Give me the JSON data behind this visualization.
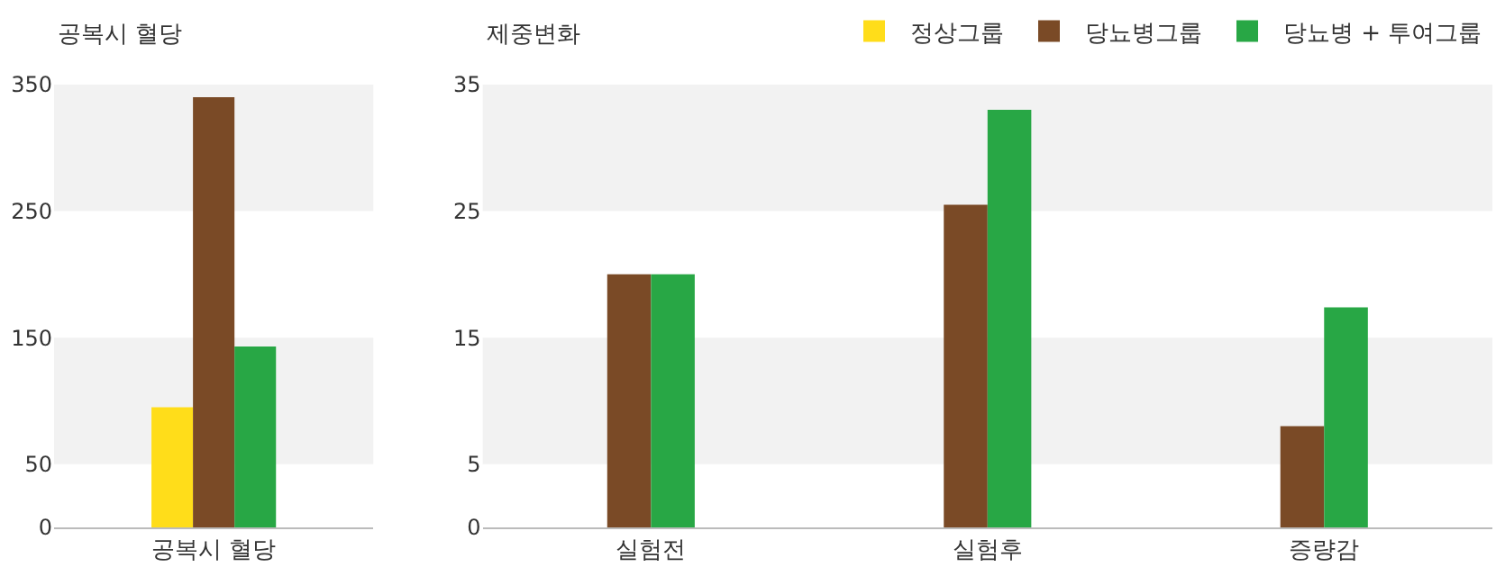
{
  "chart_data": [
    {
      "type": "bar",
      "title": "공복시 혈당",
      "categories": [
        "공복시 혈당"
      ],
      "series": [
        {
          "color": "#ffdd1a",
          "values": [
            95
          ]
        },
        {
          "color": "#7a4a26",
          "values": [
            340
          ]
        },
        {
          "color": "#28a745",
          "values": [
            143
          ]
        }
      ],
      "ylim": [
        0,
        350
      ],
      "yticks": [
        0,
        50,
        150,
        250,
        350
      ],
      "bands": [
        {
          "axis": "y",
          "from": 50,
          "to": 150,
          "color": "#f2f2f2"
        },
        {
          "axis": "y",
          "from": 250,
          "to": 350,
          "color": "#f2f2f2"
        }
      ],
      "legend": false,
      "grid": false
    },
    {
      "type": "bar",
      "title": "제중변화",
      "categories": [
        "실험전",
        "실험후",
        "증량감"
      ],
      "series": [
        {
          "name": "정상그룹",
          "color": "#ffdd1a",
          "values": [
            null,
            null,
            null
          ]
        },
        {
          "name": "당뇨병그룹",
          "color": "#7a4a26",
          "values": [
            20,
            25.5,
            8
          ]
        },
        {
          "name": "당뇨병 + 투여그룹",
          "color": "#28a745",
          "values": [
            20,
            33,
            17.4
          ]
        }
      ],
      "ylim": [
        0,
        35
      ],
      "yticks": [
        0,
        5,
        15,
        25,
        35
      ],
      "bands": [
        {
          "axis": "y",
          "from": 5,
          "to": 15,
          "color": "#f2f2f2"
        },
        {
          "axis": "y",
          "from": 25,
          "to": 35,
          "color": "#f2f2f2"
        }
      ],
      "legend": "top right",
      "grid": false
    }
  ]
}
